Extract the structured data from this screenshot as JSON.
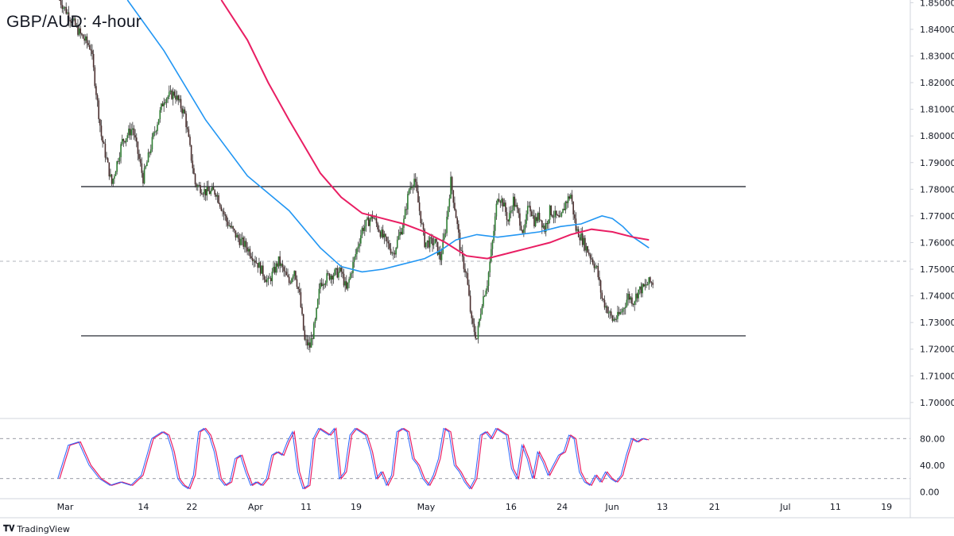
{
  "chart_data": {
    "type": "candlestick",
    "title": "GBP/AUD: 4-hour",
    "watermark": "TradingView",
    "price_axis": {
      "ticks": [
        "1.85000",
        "1.84000",
        "1.83000",
        "1.82000",
        "1.81000",
        "1.80000",
        "1.79000",
        "1.78000",
        "1.77000",
        "1.76000",
        "1.75000",
        "1.74000",
        "1.73000",
        "1.72000",
        "1.71000",
        "1.70000"
      ],
      "range": [
        1.694,
        1.851
      ]
    },
    "x_axis_ticks": [
      "Mar",
      "14",
      "22",
      "Apr",
      "11",
      "19",
      "May",
      "16",
      "24",
      "Jun",
      "13",
      "21",
      "Jul",
      "11",
      "19"
    ],
    "price_path": [
      [
        0,
        1.851
      ],
      [
        4,
        1.838
      ],
      [
        6,
        1.833
      ],
      [
        8,
        1.8
      ],
      [
        10,
        1.782
      ],
      [
        12,
        1.798
      ],
      [
        14,
        1.803
      ],
      [
        16,
        1.784
      ],
      [
        18,
        1.8
      ],
      [
        20,
        1.814
      ],
      [
        22,
        1.816
      ],
      [
        24,
        1.808
      ],
      [
        26,
        1.782
      ],
      [
        28,
        1.779
      ],
      [
        30,
        1.779
      ],
      [
        32,
        1.768
      ],
      [
        34,
        1.762
      ],
      [
        36,
        1.758
      ],
      [
        38,
        1.752
      ],
      [
        40,
        1.745
      ],
      [
        42,
        1.753
      ],
      [
        44,
        1.745
      ],
      [
        45,
        1.75
      ],
      [
        46,
        1.74
      ],
      [
        47,
        1.723
      ],
      [
        48,
        1.721
      ],
      [
        49,
        1.73
      ],
      [
        50,
        1.745
      ],
      [
        52,
        1.748
      ],
      [
        54,
        1.749
      ],
      [
        55,
        1.742
      ],
      [
        56,
        1.75
      ],
      [
        58,
        1.765
      ],
      [
        60,
        1.77
      ],
      [
        62,
        1.762
      ],
      [
        64,
        1.756
      ],
      [
        66,
        1.768
      ],
      [
        67,
        1.78
      ],
      [
        68,
        1.784
      ],
      [
        69,
        1.772
      ],
      [
        70,
        1.76
      ],
      [
        72,
        1.76
      ],
      [
        73,
        1.754
      ],
      [
        74,
        1.765
      ],
      [
        75,
        1.783
      ],
      [
        76,
        1.77
      ],
      [
        77,
        1.755
      ],
      [
        78,
        1.748
      ],
      [
        79,
        1.73
      ],
      [
        80,
        1.724
      ],
      [
        81,
        1.738
      ],
      [
        82,
        1.745
      ],
      [
        83,
        1.76
      ],
      [
        84,
        1.778
      ],
      [
        85,
        1.775
      ],
      [
        86,
        1.768
      ],
      [
        87,
        1.776
      ],
      [
        88,
        1.77
      ],
      [
        89,
        1.763
      ],
      [
        90,
        1.775
      ],
      [
        91,
        1.768
      ],
      [
        92,
        1.77
      ],
      [
        93,
        1.765
      ],
      [
        94,
        1.772
      ],
      [
        96,
        1.768
      ],
      [
        97,
        1.775
      ],
      [
        98,
        1.778
      ],
      [
        99,
        1.765
      ],
      [
        100,
        1.762
      ],
      [
        101,
        1.758
      ],
      [
        102,
        1.754
      ],
      [
        103,
        1.75
      ],
      [
        104,
        1.739
      ],
      [
        105,
        1.735
      ],
      [
        106,
        1.731
      ],
      [
        107,
        1.732
      ],
      [
        108,
        1.735
      ],
      [
        109,
        1.74
      ],
      [
        110,
        1.738
      ],
      [
        111,
        1.742
      ],
      [
        112,
        1.743
      ],
      [
        113,
        1.745
      ]
    ],
    "candle_count": 114,
    "ma_100": {
      "color": "#2196f3",
      "points": [
        [
          13,
          1.851
        ],
        [
          20,
          1.832
        ],
        [
          28,
          1.806
        ],
        [
          36,
          1.785
        ],
        [
          44,
          1.772
        ],
        [
          50,
          1.758
        ],
        [
          54,
          1.751
        ],
        [
          58,
          1.749
        ],
        [
          62,
          1.75
        ],
        [
          66,
          1.752
        ],
        [
          70,
          1.754
        ],
        [
          73,
          1.757
        ],
        [
          76,
          1.761
        ],
        [
          80,
          1.763
        ],
        [
          84,
          1.762
        ],
        [
          88,
          1.763
        ],
        [
          92,
          1.764
        ],
        [
          96,
          1.766
        ],
        [
          100,
          1.767
        ],
        [
          104,
          1.77
        ],
        [
          106,
          1.769
        ],
        [
          108,
          1.766
        ],
        [
          110,
          1.762
        ],
        [
          113,
          1.758
        ]
      ]
    },
    "ma_200": {
      "color": "#e91e63",
      "points": [
        [
          31,
          1.851
        ],
        [
          36,
          1.836
        ],
        [
          40,
          1.82
        ],
        [
          44,
          1.806
        ],
        [
          50,
          1.786
        ],
        [
          54,
          1.777
        ],
        [
          58,
          1.771
        ],
        [
          62,
          1.769
        ],
        [
          66,
          1.767
        ],
        [
          70,
          1.764
        ],
        [
          74,
          1.76
        ],
        [
          78,
          1.755
        ],
        [
          82,
          1.754
        ],
        [
          86,
          1.756
        ],
        [
          90,
          1.758
        ],
        [
          94,
          1.76
        ],
        [
          98,
          1.763
        ],
        [
          102,
          1.765
        ],
        [
          106,
          1.764
        ],
        [
          110,
          1.762
        ],
        [
          113,
          1.761
        ]
      ]
    },
    "horizontal_levels": [
      {
        "value": 1.781,
        "style": "solid",
        "color": "#131722"
      },
      {
        "value": 1.753,
        "style": "dashed",
        "color": "#b2b5be"
      },
      {
        "value": 1.725,
        "style": "solid",
        "color": "#131722"
      }
    ],
    "stochastic": {
      "range": [
        -10,
        110
      ],
      "ticks": [
        "80.00",
        "40.00",
        "0.00"
      ],
      "levels": [
        80,
        20
      ],
      "k_color": "#2962ff",
      "d_color": "#e91e63",
      "points": [
        [
          0,
          20
        ],
        [
          2,
          70
        ],
        [
          4,
          75
        ],
        [
          6,
          40
        ],
        [
          8,
          20
        ],
        [
          10,
          10
        ],
        [
          12,
          15
        ],
        [
          14,
          10
        ],
        [
          16,
          25
        ],
        [
          18,
          80
        ],
        [
          19,
          85
        ],
        [
          20,
          90
        ],
        [
          21,
          85
        ],
        [
          22,
          60
        ],
        [
          23,
          20
        ],
        [
          24,
          10
        ],
        [
          25,
          5
        ],
        [
          26,
          25
        ],
        [
          27,
          90
        ],
        [
          28,
          95
        ],
        [
          29,
          85
        ],
        [
          30,
          60
        ],
        [
          31,
          20
        ],
        [
          32,
          10
        ],
        [
          33,
          15
        ],
        [
          34,
          50
        ],
        [
          35,
          55
        ],
        [
          36,
          30
        ],
        [
          37,
          10
        ],
        [
          38,
          15
        ],
        [
          39,
          10
        ],
        [
          40,
          20
        ],
        [
          41,
          55
        ],
        [
          42,
          60
        ],
        [
          43,
          55
        ],
        [
          44,
          75
        ],
        [
          45,
          90
        ],
        [
          46,
          30
        ],
        [
          47,
          5
        ],
        [
          48,
          10
        ],
        [
          49,
          80
        ],
        [
          50,
          95
        ],
        [
          51,
          90
        ],
        [
          52,
          85
        ],
        [
          53,
          95
        ],
        [
          54,
          20
        ],
        [
          55,
          30
        ],
        [
          56,
          85
        ],
        [
          57,
          95
        ],
        [
          58,
          90
        ],
        [
          59,
          85
        ],
        [
          60,
          60
        ],
        [
          61,
          20
        ],
        [
          62,
          30
        ],
        [
          63,
          10
        ],
        [
          64,
          25
        ],
        [
          65,
          90
        ],
        [
          66,
          95
        ],
        [
          67,
          90
        ],
        [
          68,
          50
        ],
        [
          69,
          40
        ],
        [
          70,
          20
        ],
        [
          71,
          10
        ],
        [
          72,
          25
        ],
        [
          73,
          50
        ],
        [
          74,
          95
        ],
        [
          75,
          90
        ],
        [
          76,
          40
        ],
        [
          77,
          30
        ],
        [
          78,
          15
        ],
        [
          79,
          5
        ],
        [
          80,
          20
        ],
        [
          81,
          85
        ],
        [
          82,
          90
        ],
        [
          83,
          80
        ],
        [
          84,
          95
        ],
        [
          85,
          90
        ],
        [
          86,
          85
        ],
        [
          87,
          35
        ],
        [
          88,
          20
        ],
        [
          89,
          70
        ],
        [
          90,
          50
        ],
        [
          91,
          20
        ],
        [
          92,
          60
        ],
        [
          93,
          45
        ],
        [
          94,
          25
        ],
        [
          95,
          40
        ],
        [
          96,
          55
        ],
        [
          97,
          60
        ],
        [
          98,
          85
        ],
        [
          99,
          80
        ],
        [
          100,
          30
        ],
        [
          101,
          15
        ],
        [
          102,
          10
        ],
        [
          103,
          25
        ],
        [
          104,
          15
        ],
        [
          105,
          30
        ],
        [
          106,
          20
        ],
        [
          107,
          15
        ],
        [
          108,
          25
        ],
        [
          109,
          55
        ],
        [
          110,
          80
        ],
        [
          111,
          75
        ],
        [
          112,
          80
        ],
        [
          113,
          78
        ]
      ]
    }
  }
}
